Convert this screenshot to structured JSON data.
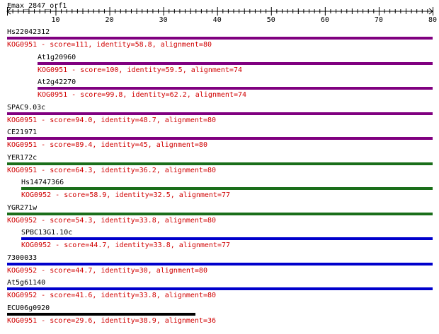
{
  "query": {
    "name": "Emax_2847_orf1",
    "length": 80
  },
  "ruler": {
    "ticks": [
      "10",
      "20",
      "30",
      "40",
      "50",
      "60",
      "70",
      "80"
    ]
  },
  "colors": {
    "purple": "#800080",
    "green": "#1a6e1a",
    "blue": "#0000cc",
    "black": "#000000"
  },
  "hits": [
    {
      "name": "Hs22042312",
      "desc": "KOG0951 - score=111, identity=58.8, alignment=80",
      "start": 1,
      "end": 80,
      "color": "purple"
    },
    {
      "name": "At1g20960",
      "desc": "KOG0951 - score=100, identity=59.5, alignment=74",
      "start": 7,
      "end": 80,
      "color": "purple"
    },
    {
      "name": "At2g42270",
      "desc": "KOG0951 - score=99.8, identity=62.2, alignment=74",
      "start": 7,
      "end": 80,
      "color": "purple"
    },
    {
      "name": "SPAC9.03c",
      "desc": "KOG0951 - score=94.0, identity=48.7, alignment=80",
      "start": 1,
      "end": 80,
      "color": "purple"
    },
    {
      "name": "CE21971",
      "desc": "KOG0951 - score=89.4, identity=45, alignment=80",
      "start": 1,
      "end": 80,
      "color": "purple"
    },
    {
      "name": "YER172c",
      "desc": "KOG0951 - score=64.3, identity=36.2, alignment=80",
      "start": 1,
      "end": 80,
      "color": "green"
    },
    {
      "name": "Hs14747366",
      "desc": "KOG0952 - score=58.9, identity=32.5, alignment=77",
      "start": 4,
      "end": 80,
      "color": "green"
    },
    {
      "name": "YGR271w",
      "desc": "KOG0952 - score=54.3, identity=33.8, alignment=80",
      "start": 1,
      "end": 80,
      "color": "green"
    },
    {
      "name": "SPBC13G1.10c",
      "desc": "KOG0952 - score=44.7, identity=33.8, alignment=77",
      "start": 4,
      "end": 80,
      "color": "blue"
    },
    {
      "name": "7300033",
      "desc": "KOG0952 - score=44.7, identity=30, alignment=80",
      "start": 1,
      "end": 80,
      "color": "blue"
    },
    {
      "name": "At5g61140",
      "desc": "KOG0952 - score=41.6, identity=33.8, alignment=80",
      "start": 1,
      "end": 80,
      "color": "blue"
    },
    {
      "name": "ECU06g0920",
      "desc": "KOG0951 - score=29.6, identity=38.9, alignment=36",
      "start": 1,
      "end": 36,
      "color": "black"
    }
  ]
}
